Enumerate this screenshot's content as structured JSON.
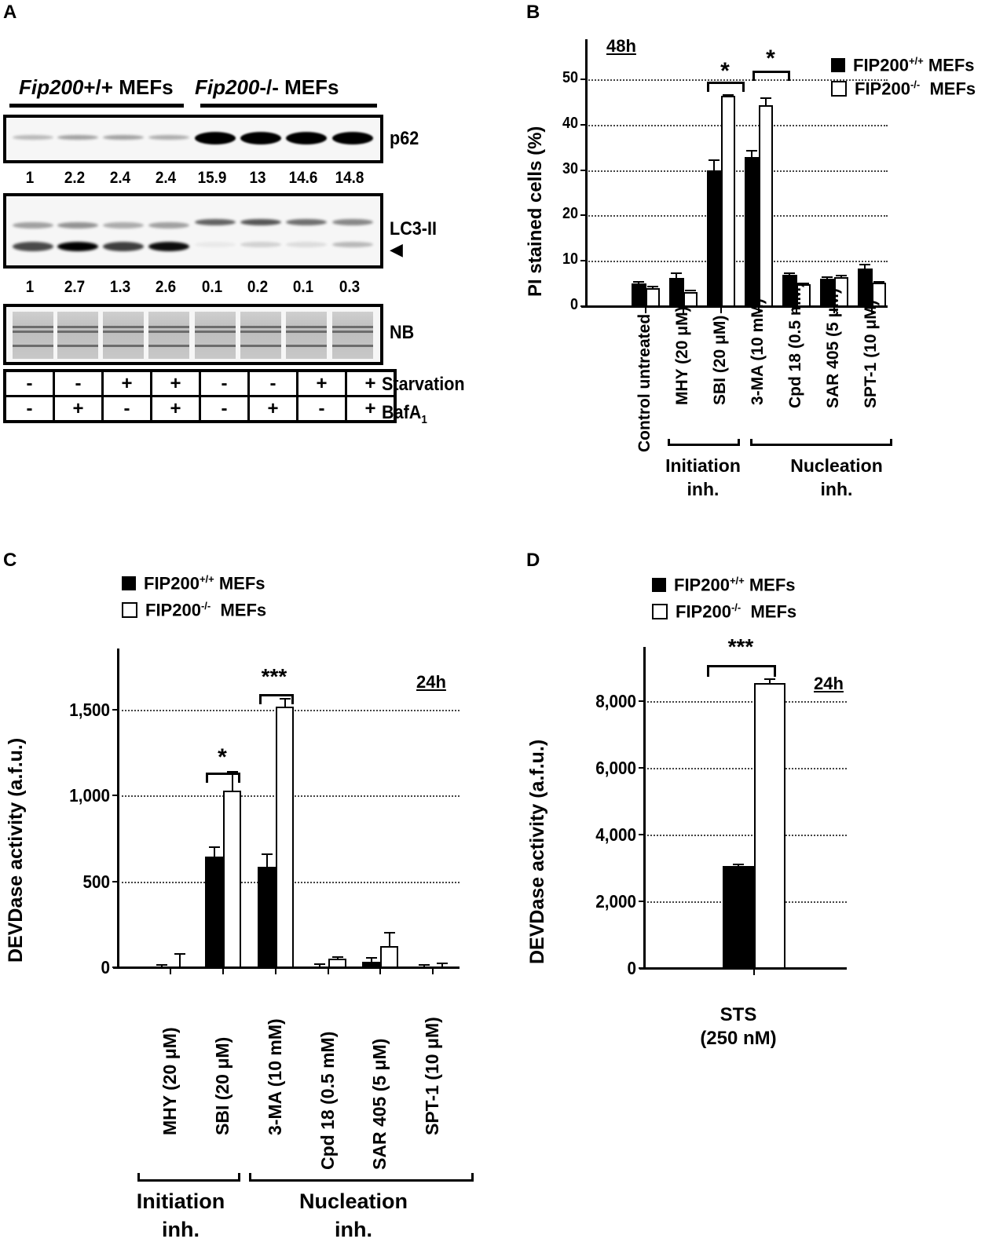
{
  "panels": {
    "A": {
      "letter": "A",
      "group_labels": [
        "Fip200+/+ MEFs",
        "Fip200-/- MEFs"
      ],
      "blots": [
        {
          "name": "p62",
          "label": "p62",
          "quant": [
            "1",
            "2.2",
            "2.4",
            "2.4",
            "15.9",
            "13",
            "14.6",
            "14.8"
          ]
        },
        {
          "name": "LC3",
          "label": "LC3-II",
          "arrow": "◀",
          "quant": [
            "1",
            "2.7",
            "1.3",
            "2.6",
            "0.1",
            "0.2",
            "0.1",
            "0.3"
          ]
        },
        {
          "name": "NB",
          "label": "NB"
        }
      ],
      "conditions": [
        {
          "label": "Starvation",
          "values": [
            "-",
            "-",
            "+",
            "+",
            "-",
            "-",
            "+",
            "+"
          ]
        },
        {
          "label": "BafA",
          "subscript": "1",
          "values": [
            "-",
            "+",
            "-",
            "+",
            "-",
            "+",
            "-",
            "+"
          ]
        }
      ]
    },
    "B": {
      "letter": "B",
      "time": "48h",
      "ylabel": "PI stained cells (%)",
      "yticks": [
        "0",
        "10",
        "20",
        "30",
        "40",
        "50"
      ],
      "legend": [
        {
          "base": "FIP200",
          "sup": "+/+",
          "suffix": " MEFs",
          "color": "#000000"
        },
        {
          "base": "FIP200",
          "sup": "-/-",
          "suffix": "  MEFs",
          "color": "#ffffff"
        }
      ],
      "categories": [
        "Control untreated",
        "MHY (20 μM)",
        "SBI (20 μM)",
        "3-MA (10 mM)",
        "Cpd 18 (0.5 mM)",
        "SAR 405 (5 μM)",
        "SPT-1 (10 μM)"
      ],
      "groups": [
        {
          "label_line1": "Initiation",
          "label_line2": "inh."
        },
        {
          "label_line1": "Nucleation",
          "label_line2": "inh."
        }
      ],
      "significance": [
        "*",
        "*"
      ]
    },
    "C": {
      "letter": "C",
      "time": "24h",
      "ylabel": "DEVDase  activity (a.f.u.)",
      "yticks": [
        "0",
        "500",
        "1,000",
        "1,500"
      ],
      "legend": [
        {
          "base": "FIP200",
          "sup": "+/+",
          "suffix": " MEFs",
          "color": "#000000"
        },
        {
          "base": "FIP200",
          "sup": "-/-",
          "suffix": "  MEFs",
          "color": "#ffffff"
        }
      ],
      "categories": [
        "MHY (20 μM)",
        "SBI (20 μM)",
        "3-MA (10 mM)",
        "Cpd 18 (0.5 mM)",
        "SAR 405 (5 μM)",
        "SPT-1 (10 μM)"
      ],
      "groups": [
        {
          "label_line1": "Initiation",
          "label_line2": "inh."
        },
        {
          "label_line1": "Nucleation",
          "label_line2": "inh."
        }
      ],
      "significance": [
        "*",
        "***"
      ]
    },
    "D": {
      "letter": "D",
      "time": "24h",
      "ylabel": "DEVDase  activity (a.f.u.)",
      "yticks": [
        "0",
        "2,000",
        "4,000",
        "6,000",
        "8,000"
      ],
      "legend": [
        {
          "base": "FIP200",
          "sup": "+/+",
          "suffix": " MEFs",
          "color": "#000000"
        },
        {
          "base": "FIP200",
          "sup": "-/-",
          "suffix": "  MEFs",
          "color": "#ffffff"
        }
      ],
      "category_line1": "STS",
      "category_line2": "(250 nM)",
      "significance": [
        "***"
      ]
    }
  },
  "chart_data": [
    {
      "panel": "B",
      "type": "bar",
      "title": "48h",
      "xlabel": "",
      "ylabel": "PI stained cells (%)",
      "ylim": [
        0,
        55
      ],
      "grid": true,
      "legend_position": "top-right",
      "categories": [
        "Control untreated",
        "MHY (20 μM)",
        "SBI (20 μM)",
        "3-MA (10 mM)",
        "Cpd 18 (0.5 mM)",
        "SAR 405 (5 μM)",
        "SPT-1 (10 μM)"
      ],
      "series": [
        {
          "name": "FIP200+/+ MEFs",
          "color": "#000000",
          "values": [
            5.0,
            6.3,
            30.0,
            32.8,
            7.0,
            6.1,
            8.3
          ],
          "errors": [
            0.3,
            1.0,
            2.2,
            1.5,
            0.3,
            0.3,
            0.9
          ]
        },
        {
          "name": "FIP200-/- MEFs",
          "color": "#ffffff",
          "values": [
            4.0,
            3.2,
            46.3,
            44.3,
            4.8,
            6.4,
            5.2
          ],
          "errors": [
            0.3,
            0.3,
            0.2,
            1.5,
            0.2,
            0.4,
            0.2
          ]
        }
      ],
      "annotations": [
        "* SBI (20 μM)",
        "* 3-MA (10 mM)"
      ],
      "category_groups": [
        {
          "label": "Initiation inh.",
          "members": [
            "MHY (20 μM)",
            "SBI (20 μM)"
          ]
        },
        {
          "label": "Nucleation inh.",
          "members": [
            "3-MA (10 mM)",
            "Cpd 18 (0.5 mM)",
            "SAR 405 (5 μM)",
            "SPT-1 (10 μM)"
          ]
        }
      ]
    },
    {
      "panel": "C",
      "type": "bar",
      "title": "24h",
      "xlabel": "",
      "ylabel": "DEVDase activity (a.f.u.)",
      "ylim": [
        0,
        1850
      ],
      "grid": true,
      "legend_position": "top-left",
      "categories": [
        "MHY (20 μM)",
        "SBI (20 μM)",
        "3-MA (10 mM)",
        "Cpd 18 (0.5 mM)",
        "SAR 405 (5 μM)",
        "SPT-1 (10 μM)"
      ],
      "series": [
        {
          "name": "FIP200+/+ MEFs",
          "color": "#000000",
          "values": [
            0,
            645,
            585,
            0,
            30,
            0
          ],
          "errors": [
            15,
            55,
            75,
            20,
            25,
            15
          ]
        },
        {
          "name": "FIP200-/- MEFs",
          "color": "#ffffff",
          "values": [
            0,
            1030,
            1520,
            50,
            125,
            0
          ],
          "errors": [
            80,
            110,
            45,
            8,
            75,
            25
          ]
        }
      ],
      "annotations": [
        "* SBI (20 μM)",
        "*** 3-MA (10 mM)"
      ],
      "category_groups": [
        {
          "label": "Initiation inh.",
          "members": [
            "MHY (20 μM)",
            "SBI (20 μM)"
          ]
        },
        {
          "label": "Nucleation inh.",
          "members": [
            "3-MA (10 mM)",
            "Cpd 18 (0.5 mM)",
            "SAR 405 (5 μM)",
            "SPT-1 (10 μM)"
          ]
        }
      ]
    },
    {
      "panel": "D",
      "type": "bar",
      "title": "24h",
      "xlabel": "",
      "ylabel": "DEVDase activity (a.f.u.)",
      "ylim": [
        0,
        9500
      ],
      "grid": true,
      "legend_position": "top-left",
      "categories": [
        "STS (250 nM)"
      ],
      "series": [
        {
          "name": "FIP200+/+ MEFs",
          "color": "#000000",
          "values": [
            3070
          ],
          "errors": [
            30
          ]
        },
        {
          "name": "FIP200-/- MEFs",
          "color": "#ffffff",
          "values": [
            8550
          ],
          "errors": [
            110
          ]
        }
      ],
      "annotations": [
        "*** STS (250 nM)"
      ]
    }
  ]
}
